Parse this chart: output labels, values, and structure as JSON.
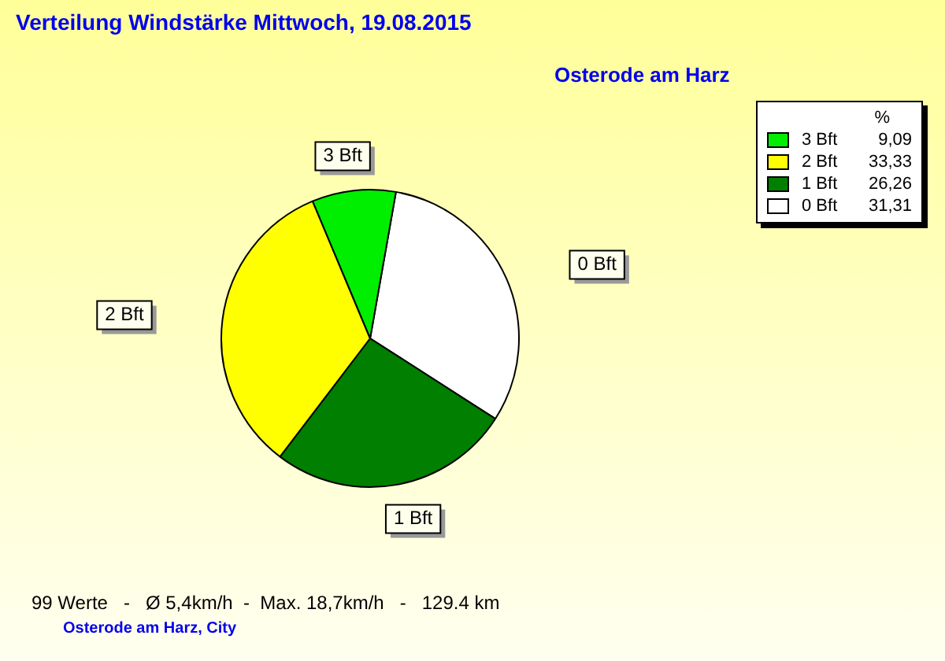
{
  "chart_data": {
    "type": "pie",
    "title": "Verteilung Windstärke  Mittwoch, 19.08.2015",
    "subtitle": "Osterode am Harz",
    "categories": [
      "3 Bft",
      "2 Bft",
      "1 Bft",
      "0 Bft"
    ],
    "values": [
      9.09,
      33.33,
      26.26,
      31.31
    ],
    "colors": [
      "#00ee00",
      "#ffff00",
      "#007f00",
      "#ffffff"
    ],
    "value_labels": [
      "9,09",
      "33,33",
      "26,26",
      "31,31"
    ],
    "legend_title": "%",
    "legend": "top right",
    "annotations": [
      "99 Werte   -   Ø 5,4km/h  -  Max. 18,7km/h   -   129.4 km",
      "Osterode am Harz, City"
    ]
  }
}
